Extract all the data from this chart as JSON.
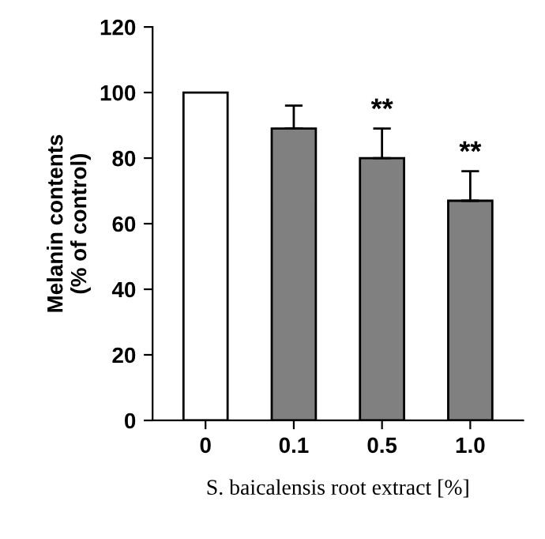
{
  "chart_data": {
    "type": "bar",
    "categories": [
      "0",
      "0.1",
      "0.5",
      "1.0"
    ],
    "values": [
      100,
      89,
      80,
      67
    ],
    "colors": [
      "#ffffff",
      "#808080",
      "#808080",
      "#808080"
    ],
    "errors": [
      null,
      [
        89,
        96
      ],
      [
        80,
        89
      ],
      [
        67,
        76
      ]
    ],
    "ylim": [
      0,
      120
    ],
    "yticks": [
      0,
      20,
      40,
      60,
      80,
      100,
      120
    ],
    "ylabel": "Melanin contents\n(% of control)",
    "xlabel": "S. baicalensis root extract [%]",
    "annotations": [
      {
        "text": "**",
        "x": "0.5",
        "y": 89
      },
      {
        "text": "**",
        "x": "1.0",
        "y": 76
      }
    ],
    "grid": false
  }
}
